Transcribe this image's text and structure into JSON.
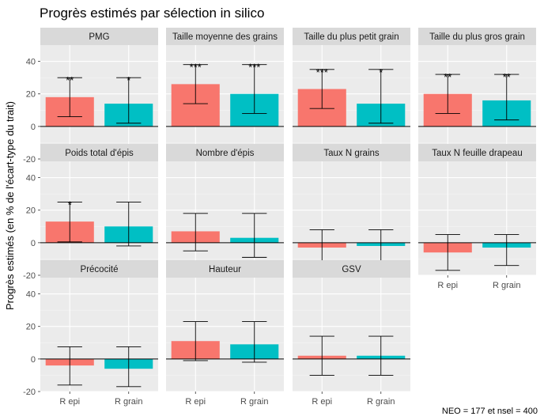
{
  "chart_data": {
    "type": "bar",
    "title": "Progrès estimés par sélection in silico",
    "ylabel": "Progrès estimés (en % de l'écart-type du trait)",
    "xlabel": "",
    "caption": "NEO =  177 et nsel = 400",
    "categories": [
      "R epi",
      "R grain"
    ],
    "colors": {
      "R epi": "#F8766D",
      "R grain": "#00BFC4"
    },
    "ylim": [
      -20,
      50
    ],
    "yticks": [
      -20,
      0,
      20,
      40
    ],
    "ytick_labels": [
      "-20",
      "0",
      "20",
      "40"
    ],
    "grid": true,
    "legend": "none",
    "facets": [
      {
        "label": "PMG",
        "values": [
          18,
          14
        ],
        "err_low": [
          6,
          2
        ],
        "err_high": [
          30,
          30
        ],
        "sig": [
          "**",
          "*"
        ]
      },
      {
        "label": "Taille moyenne des grains",
        "values": [
          26,
          20
        ],
        "err_low": [
          14,
          8
        ],
        "err_high": [
          38,
          38
        ],
        "sig": [
          "***",
          "***"
        ]
      },
      {
        "label": "Taille du plus petit grain",
        "values": [
          23,
          14
        ],
        "err_low": [
          11,
          2
        ],
        "err_high": [
          35,
          35
        ],
        "sig": [
          "***",
          "*"
        ]
      },
      {
        "label": "Taille du plus gros grain",
        "values": [
          20,
          16
        ],
        "err_low": [
          8,
          4
        ],
        "err_high": [
          32,
          32
        ],
        "sig": [
          "**",
          "**"
        ]
      },
      {
        "label": "Poids total d'épis",
        "values": [
          13,
          10
        ],
        "err_low": [
          0.5,
          -2
        ],
        "err_high": [
          25,
          25
        ],
        "sig": [
          "*",
          ""
        ]
      },
      {
        "label": "Nombre d'épis",
        "values": [
          7,
          3
        ],
        "err_low": [
          -5,
          -9
        ],
        "err_high": [
          18,
          18
        ],
        "sig": [
          "",
          ""
        ]
      },
      {
        "label": "Taux N grains",
        "values": [
          -3,
          -2
        ],
        "err_low": [
          -15,
          -13
        ],
        "err_high": [
          8,
          8
        ],
        "sig": [
          "",
          ""
        ]
      },
      {
        "label": "Taux N feuille drapeau",
        "values": [
          -6,
          -3
        ],
        "err_low": [
          -17,
          -14
        ],
        "err_high": [
          5,
          5
        ],
        "sig": [
          "",
          ""
        ]
      },
      {
        "label": "Précocité",
        "values": [
          -4,
          -6
        ],
        "err_low": [
          -16,
          -17
        ],
        "err_high": [
          7.5,
          7.5
        ],
        "sig": [
          "",
          ""
        ]
      },
      {
        "label": "Hauteur",
        "values": [
          11,
          9
        ],
        "err_low": [
          -1,
          -2
        ],
        "err_high": [
          23,
          23
        ],
        "sig": [
          "",
          ""
        ]
      },
      {
        "label": "GSV",
        "values": [
          2,
          2
        ],
        "err_low": [
          -10,
          -10
        ],
        "err_high": [
          14,
          14
        ],
        "sig": [
          "",
          ""
        ]
      }
    ]
  }
}
